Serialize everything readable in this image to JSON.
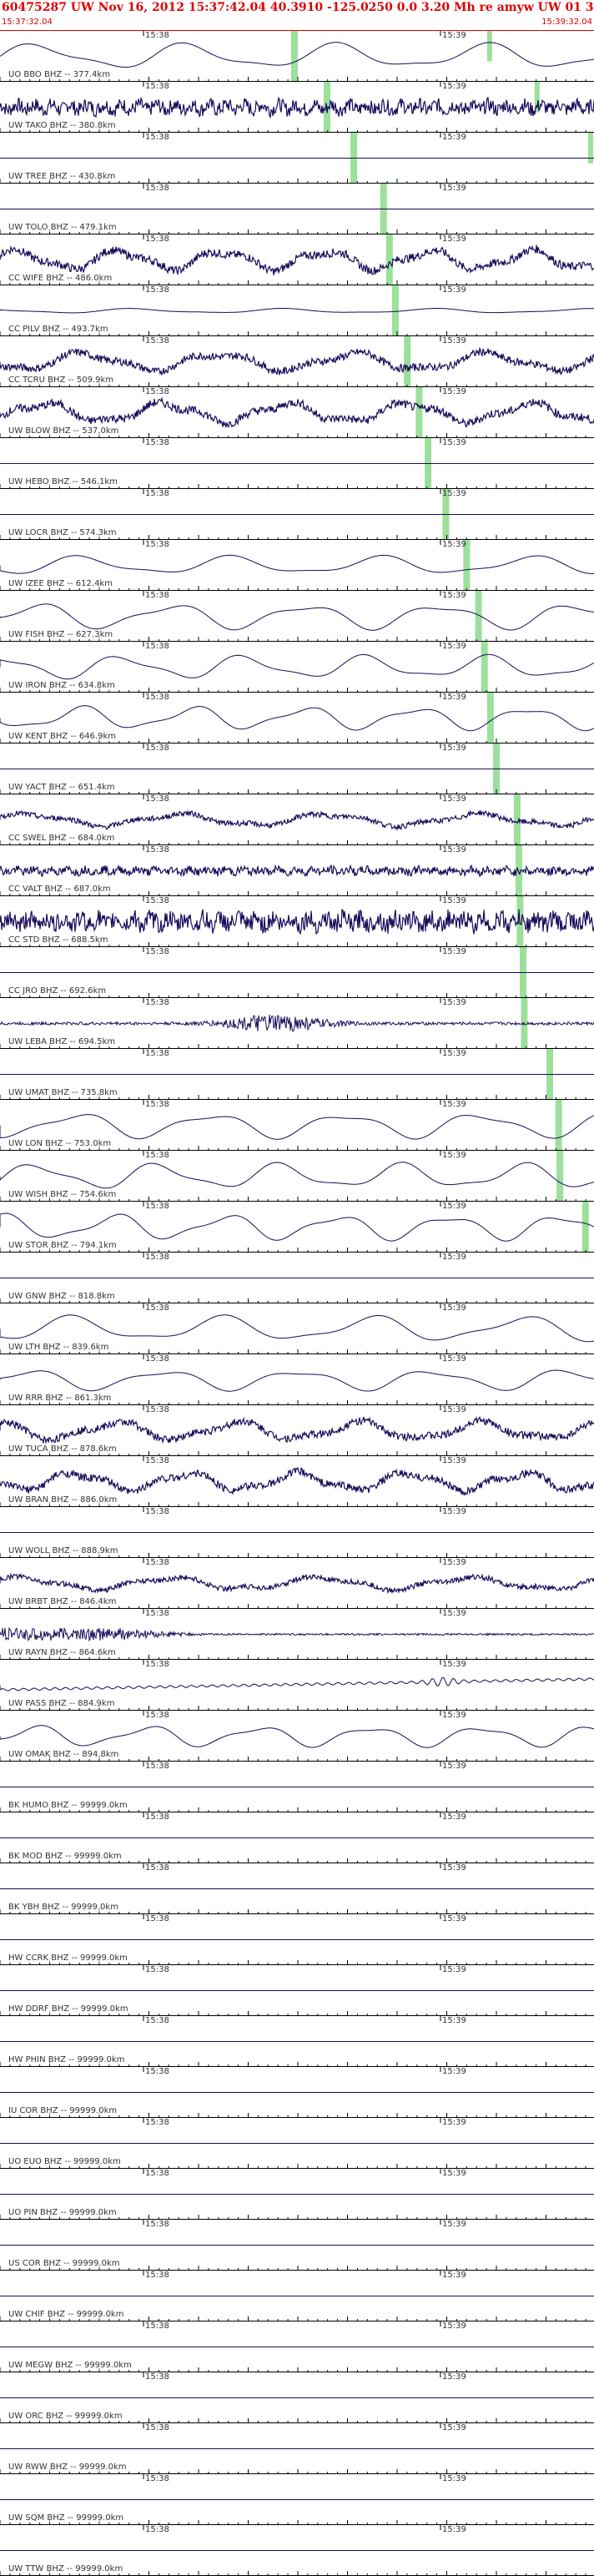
{
  "header": {
    "title": "60475287 UW Nov 16, 2012 15:37:42.04   40.3910 -125.0250  0.0 3.20 Mh re amyw UW 01   3",
    "start_time": "15:37:32.04",
    "end_time": "15:39:32.04"
  },
  "time_labels": [
    "15:38",
    "15:39"
  ],
  "colors": {
    "header_text": "#dd0000",
    "trace": "#1a0a5a",
    "pick": "#9be09b",
    "axis": "#000000"
  },
  "traces": [
    {
      "label": "UO BBO BHZ -- 377.4km",
      "pick": 0.49,
      "pick2": 0.82,
      "amp": 0.55,
      "style": "lf"
    },
    {
      "label": "UW TAKO BHZ -- 380.8km",
      "pick": 0.545,
      "pick2": 0.9,
      "amp": 0.35,
      "style": "hf"
    },
    {
      "label": "UW TREE BHZ -- 430.8km",
      "pick": 0.59,
      "pick2": 0.99,
      "amp": 0.0,
      "style": "flat"
    },
    {
      "label": "UW TOLO BHZ -- 479.1km",
      "pick": 0.64,
      "amp": 0.0,
      "style": "flat"
    },
    {
      "label": "CC WIFE BHZ -- 486.0km",
      "pick": 0.65,
      "amp": 0.55,
      "style": "mixed"
    },
    {
      "label": "CC PILV BHZ -- 493.7km",
      "pick": 0.66,
      "amp": 0.2,
      "style": "lfs"
    },
    {
      "label": "CC TCRU BHZ -- 509.9km",
      "pick": 0.68,
      "amp": 0.5,
      "style": "mixed"
    },
    {
      "label": "UW BLOW BHZ -- 537.0km",
      "pick": 0.7,
      "amp": 0.55,
      "style": "mixed"
    },
    {
      "label": "UW HEBO BHZ -- 546.1km",
      "pick": 0.715,
      "amp": 0.0,
      "style": "flat"
    },
    {
      "label": "UW LOCR BHZ -- 574.3km",
      "pick": 0.745,
      "amp": 0.0,
      "style": "flat"
    },
    {
      "label": "UW IZEE BHZ -- 612.4km",
      "pick": 0.78,
      "amp": 0.4,
      "style": "lf"
    },
    {
      "label": "UW FISH BHZ -- 627.3km",
      "pick": 0.8,
      "amp": 0.55,
      "style": "lf"
    },
    {
      "label": "UW IRON BHZ -- 634.8km",
      "pick": 0.81,
      "amp": 0.5,
      "style": "lf"
    },
    {
      "label": "UW KENT BHZ -- 646.9km",
      "pick": 0.82,
      "amp": 0.5,
      "style": "lf"
    },
    {
      "label": "UW YACT BHZ -- 651.4km",
      "pick": 0.83,
      "amp": 0.0,
      "style": "flat"
    },
    {
      "label": "CC SWEL BHZ -- 684.0km",
      "pick": 0.865,
      "amp": 0.35,
      "style": "mixed"
    },
    {
      "label": "CC VALT BHZ -- 687.0km",
      "pick": 0.868,
      "amp": 0.2,
      "style": "hf"
    },
    {
      "label": "CC STD BHZ -- 688.5km",
      "pick": 0.87,
      "amp": 0.45,
      "style": "hf"
    },
    {
      "label": "CC JRO BHZ -- 692.6km",
      "pick": 0.875,
      "amp": 0.0,
      "style": "flat"
    },
    {
      "label": "UW LEBA BHZ -- 694.5km",
      "pick": 0.877,
      "amp": 0.3,
      "style": "burst"
    },
    {
      "label": "UW UMAT BHZ -- 735.8km",
      "pick": 0.92,
      "amp": 0.0,
      "style": "flat"
    },
    {
      "label": "UW LON BHZ -- 753.0km",
      "pick": 0.935,
      "amp": 0.55,
      "style": "lf"
    },
    {
      "label": "UW WISH BHZ -- 754.6km",
      "pick": 0.937,
      "amp": 0.55,
      "style": "lf"
    },
    {
      "label": "UW STOR BHZ -- 794.1km",
      "pick": 0.98,
      "amp": 0.55,
      "style": "lf"
    },
    {
      "label": "UW GNW BHZ -- 818.8km",
      "pick": -1,
      "amp": 0.0,
      "style": "flat"
    },
    {
      "label": "UW LTH BHZ -- 839.6km",
      "pick": -1,
      "amp": 0.55,
      "style": "lf"
    },
    {
      "label": "UW RRR BHZ -- 861.3km",
      "pick": -1,
      "amp": 0.45,
      "style": "lf"
    },
    {
      "label": "UW TUCA BHZ -- 878.6km",
      "pick": -1,
      "amp": 0.5,
      "style": "mixed"
    },
    {
      "label": "UW BRAN BHZ -- 886.0km",
      "pick": -1,
      "amp": 0.5,
      "style": "mixed"
    },
    {
      "label": "UW WOLL BHZ -- 888.9km",
      "pick": -1,
      "amp": 0.0,
      "style": "flat"
    },
    {
      "label": "UW BRBT BHZ -- 846.4km",
      "pick": -1,
      "amp": 0.35,
      "style": "mixed"
    },
    {
      "label": "UW RAYN BHZ -- 864.6km",
      "pick": -1,
      "amp": 0.25,
      "style": "decay"
    },
    {
      "label": "UW PASS BHZ -- 884.9km",
      "pick": -1,
      "amp": 0.3,
      "style": "drift"
    },
    {
      "label": "UW OMAK BHZ -- 894.8km",
      "pick": -1,
      "amp": 0.45,
      "style": "lf"
    },
    {
      "label": "BK HUMO BHZ -- 99999.0km",
      "pick": -1,
      "amp": 0.0,
      "style": "flat"
    },
    {
      "label": "BK MOD BHZ -- 99999.0km",
      "pick": -1,
      "amp": 0.0,
      "style": "flat"
    },
    {
      "label": "BK YBH BHZ -- 99999.0km",
      "pick": -1,
      "amp": 0.0,
      "style": "flat"
    },
    {
      "label": "HW CCRK BHZ -- 99999.0km",
      "pick": -1,
      "amp": 0.0,
      "style": "flat"
    },
    {
      "label": "HW DDRF BHZ -- 99999.0km",
      "pick": -1,
      "amp": 0.0,
      "style": "flat"
    },
    {
      "label": "HW PHIN BHZ -- 99999.0km",
      "pick": -1,
      "amp": 0.0,
      "style": "flat"
    },
    {
      "label": "IU COR BHZ -- 99999.0km",
      "pick": -1,
      "amp": 0.0,
      "style": "flat"
    },
    {
      "label": "UO EUO BHZ -- 99999.0km",
      "pick": -1,
      "amp": 0.0,
      "style": "flat"
    },
    {
      "label": "UO PIN BHZ -- 99999.0km",
      "pick": -1,
      "amp": 0.0,
      "style": "flat"
    },
    {
      "label": "US COR BHZ -- 99999.0km",
      "pick": -1,
      "amp": 0.0,
      "style": "flat"
    },
    {
      "label": "UW CHIF BHZ -- 99999.0km",
      "pick": -1,
      "amp": 0.0,
      "style": "flat"
    },
    {
      "label": "UW MEGW BHZ -- 99999.0km",
      "pick": -1,
      "amp": 0.0,
      "style": "flat"
    },
    {
      "label": "UW ORC BHZ -- 99999.0km",
      "pick": -1,
      "amp": 0.0,
      "style": "flat"
    },
    {
      "label": "UW RWW BHZ -- 99999.0km",
      "pick": -1,
      "amp": 0.0,
      "style": "flat"
    },
    {
      "label": "UW SQM BHZ -- 99999.0km",
      "pick": -1,
      "amp": 0.0,
      "style": "flat"
    },
    {
      "label": "UW TTW BHZ -- 99999.0km",
      "pick": -1,
      "amp": 0.0,
      "style": "flat"
    }
  ]
}
